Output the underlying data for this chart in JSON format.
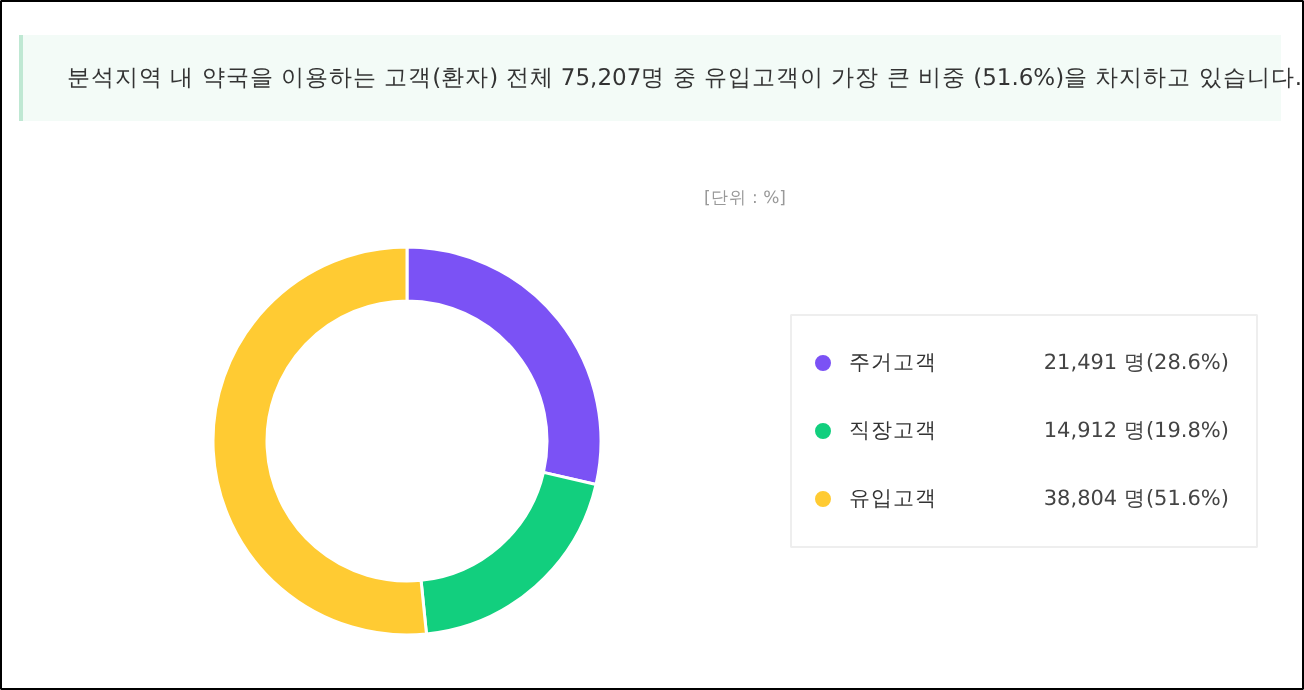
{
  "chart_data": {
    "type": "donut",
    "title": "분석지역 내 약국을 이용하는 고객(환자) 전체 75,207명 중 유입고객이 가장 큰 비중 (51.6%)을 차지하고 있습니다.",
    "annotations": [
      "[단위 : %]"
    ],
    "categories": [
      "주거고객",
      "직장고객",
      "유입고객"
    ],
    "values": [
      28.6,
      19.8,
      51.6
    ],
    "colors": [
      "#7b52f5",
      "#12cf7e",
      "#ffcb33"
    ],
    "value_labels": [
      "21,491 명(28.6%)",
      "14,912 명(19.8%)",
      "38,804 명(51.6%)"
    ],
    "legend": "right"
  }
}
